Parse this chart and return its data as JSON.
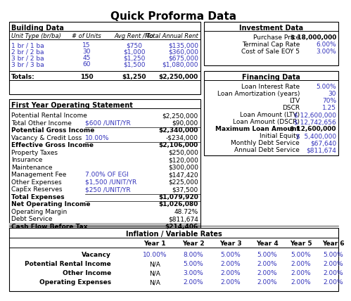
{
  "title": "Quick Proforma Data",
  "building_header": [
    "Unit Type (br/ba)",
    "# of Units",
    "Avg Rent /Mo",
    "Total Annual Rent"
  ],
  "building_rows": [
    [
      "1 br / 1 ba",
      "15",
      "$750",
      "$135,000"
    ],
    [
      "2 br / 2 ba",
      "30",
      "$1,000",
      "$360,000"
    ],
    [
      "3 br / 2 ba",
      "45",
      "$1,250",
      "$675,000"
    ],
    [
      "3 br / 3 ba",
      "60",
      "$1,500",
      "$1,080,000"
    ]
  ],
  "building_totals": [
    "Totals:",
    "150",
    "$1,250",
    "$2,250,000"
  ],
  "investment_header": "Investment Data",
  "investment_rows": [
    [
      "Purchase Price",
      "$ 18,000,000",
      false
    ],
    [
      "Terminal Cap Rate",
      "6.00%",
      true
    ],
    [
      "Cost of Sale EOY 5",
      "3.00%",
      true
    ]
  ],
  "operating_header": "First Year Operating Statement",
  "operating_rows": [
    [
      "Potential Rental Income",
      "",
      "$2,250,000",
      false
    ],
    [
      "Total Other Income",
      "$600 /UNIT/YR",
      "$90,000",
      false
    ],
    [
      "Potential Gross Income",
      "",
      "$2,340,000",
      true
    ],
    [
      "Vacancy & Credit Loss",
      "10.00%",
      "-$234,000",
      false
    ],
    [
      "Effective Gross Income",
      "",
      "$2,106,000",
      true
    ],
    [
      "Property Taxes",
      "",
      "$250,000",
      false
    ],
    [
      "Insurance",
      "",
      "$120,000",
      false
    ],
    [
      "Maintenance",
      "",
      "$300,000",
      false
    ],
    [
      "Management Fee",
      "7.00% OF EGI",
      "$147,420",
      false
    ],
    [
      "Other Expenses",
      "$1,500 /UNIT/YR",
      "$225,000",
      false
    ],
    [
      "CapEx Reserves",
      "$250 /UNIT/YR",
      "$37,500",
      false
    ],
    [
      "Total Expenses",
      "",
      "$1,079,920",
      true
    ],
    [
      "Net Operating Income",
      "",
      "$1,026,080",
      true
    ],
    [
      "Operating Margin",
      "",
      "48.72%",
      false
    ],
    [
      "Debt Service",
      "",
      "$811,674",
      false
    ],
    [
      "Cash Flow Before Tax",
      "",
      "$214,406",
      true
    ]
  ],
  "financing_header": "Financing Data",
  "financing_rows": [
    [
      "Loan Interest Rate",
      "5.00%",
      false
    ],
    [
      "Loan Amortization (years)",
      "30",
      false
    ],
    [
      "LTV",
      "70%",
      false
    ],
    [
      "DSCR",
      "1.25",
      false
    ],
    [
      "Loan Amount (LTV)",
      "$ 12,600,000",
      false
    ],
    [
      "Loan Amount (DSCR)",
      "$ 12,742,656",
      false
    ],
    [
      "Maximum Loan Amount",
      "$ 12,600,000",
      true
    ],
    [
      "Initial Equity",
      "$  5,400,000",
      false
    ],
    [
      "Monthly Debt Service",
      "$67,640",
      false
    ],
    [
      "Annual Debt Service",
      "$811,674",
      false
    ]
  ],
  "inflation_header": "Inflation / Variable Rates",
  "inflation_col_headers": [
    "",
    "Year 1",
    "Year 2",
    "Year 3",
    "Year 4",
    "Year 5",
    "Year 6"
  ],
  "inflation_rows": [
    [
      "Vacancy",
      "10.00%",
      "8.00%",
      "5.00%",
      "5.00%",
      "5.00%",
      "5.00%"
    ],
    [
      "Potential Rental Income",
      "N/A",
      "5.00%",
      "2.00%",
      "2.00%",
      "2.00%",
      "2.00%"
    ],
    [
      "Other Income",
      "N/A",
      "3.00%",
      "2.00%",
      "2.00%",
      "2.00%",
      "2.00%"
    ],
    [
      "Operating Expenses",
      "N/A",
      "2.00%",
      "2.00%",
      "2.00%",
      "2.00%",
      "2.00%"
    ]
  ],
  "blue": "#3333BB",
  "black": "#000000",
  "gray_bg": "#C8C8C8"
}
